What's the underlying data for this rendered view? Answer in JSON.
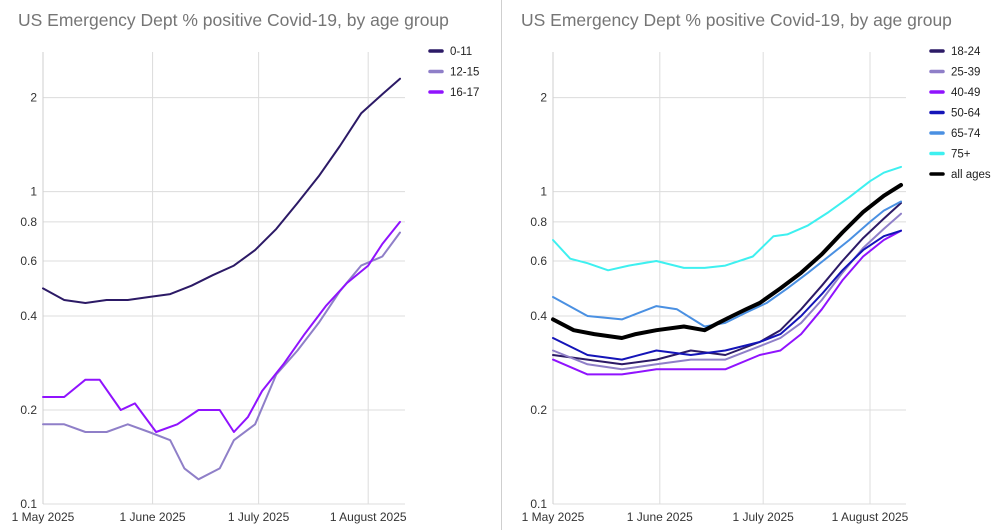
{
  "chart_data": [
    {
      "type": "line",
      "title": "US Emergency Dept % positive Covid-19, by age group",
      "y_scale": "log",
      "ylim": [
        0.1,
        2.8
      ],
      "y_ticks": [
        0.1,
        0.2,
        0.4,
        0.6,
        0.8,
        1,
        2
      ],
      "y_tick_labels": [
        "0.1",
        "0.2",
        "0.4",
        "0.6",
        "0.8",
        "1",
        "2"
      ],
      "x_ticks": [
        0,
        31,
        61,
        92
      ],
      "x_tick_labels": [
        "1 May 2025",
        "1 June 2025",
        "1 July 2025",
        "1 August 2025"
      ],
      "x_range": [
        0,
        101
      ],
      "grid": true,
      "legend_position": "top-right",
      "series": [
        {
          "name": "0-11",
          "color": "#2c1a66",
          "width": 2,
          "x": [
            0,
            6,
            12,
            18,
            24,
            30,
            36,
            42,
            48,
            54,
            60,
            66,
            72,
            78,
            84,
            90,
            96,
            101
          ],
          "y": [
            0.49,
            0.45,
            0.44,
            0.45,
            0.45,
            0.46,
            0.47,
            0.5,
            0.54,
            0.58,
            0.65,
            0.76,
            0.92,
            1.12,
            1.4,
            1.78,
            2.05,
            2.3
          ]
        },
        {
          "name": "12-15",
          "color": "#8f7fc8",
          "width": 2,
          "x": [
            0,
            6,
            12,
            18,
            24,
            30,
            36,
            40,
            44,
            50,
            54,
            60,
            66,
            72,
            78,
            84,
            90,
            96,
            101
          ],
          "y": [
            0.18,
            0.18,
            0.17,
            0.17,
            0.18,
            0.17,
            0.16,
            0.13,
            0.12,
            0.13,
            0.16,
            0.18,
            0.26,
            0.31,
            0.38,
            0.48,
            0.58,
            0.62,
            0.74
          ]
        },
        {
          "name": "16-17",
          "color": "#9013fe",
          "width": 2,
          "x": [
            0,
            6,
            12,
            16,
            22,
            26,
            32,
            38,
            44,
            50,
            54,
            58,
            62,
            68,
            74,
            80,
            86,
            92,
            96,
            101
          ],
          "y": [
            0.22,
            0.22,
            0.25,
            0.25,
            0.2,
            0.21,
            0.17,
            0.18,
            0.2,
            0.2,
            0.17,
            0.19,
            0.23,
            0.28,
            0.35,
            0.43,
            0.51,
            0.58,
            0.68,
            0.8
          ]
        }
      ]
    },
    {
      "type": "line",
      "title": "US Emergency Dept % positive Covid-19, by age group",
      "y_scale": "log",
      "ylim": [
        0.1,
        2.8
      ],
      "y_ticks": [
        0.1,
        0.2,
        0.4,
        0.6,
        0.8,
        1,
        2
      ],
      "y_tick_labels": [
        "0.1",
        "0.2",
        "0.4",
        "0.6",
        "0.8",
        "1",
        "2"
      ],
      "x_ticks": [
        0,
        31,
        61,
        92
      ],
      "x_tick_labels": [
        "1 May 2025",
        "1 June 2025",
        "1 July 2025",
        "1 August 2025"
      ],
      "x_range": [
        0,
        101
      ],
      "grid": true,
      "legend_position": "top-right",
      "series": [
        {
          "name": "18-24",
          "color": "#2c1a66",
          "width": 2,
          "x": [
            0,
            10,
            20,
            30,
            40,
            50,
            60,
            66,
            72,
            78,
            84,
            90,
            96,
            101
          ],
          "y": [
            0.3,
            0.29,
            0.28,
            0.29,
            0.31,
            0.3,
            0.33,
            0.36,
            0.42,
            0.5,
            0.6,
            0.71,
            0.82,
            0.92
          ]
        },
        {
          "name": "25-39",
          "color": "#8f7fc8",
          "width": 2,
          "x": [
            0,
            10,
            20,
            30,
            40,
            50,
            60,
            66,
            72,
            78,
            84,
            90,
            96,
            101
          ],
          "y": [
            0.31,
            0.28,
            0.27,
            0.28,
            0.29,
            0.29,
            0.32,
            0.34,
            0.38,
            0.45,
            0.55,
            0.66,
            0.76,
            0.85
          ]
        },
        {
          "name": "40-49",
          "color": "#9013fe",
          "width": 2,
          "x": [
            0,
            10,
            20,
            30,
            40,
            50,
            60,
            66,
            72,
            78,
            84,
            90,
            96,
            101
          ],
          "y": [
            0.29,
            0.26,
            0.26,
            0.27,
            0.27,
            0.27,
            0.3,
            0.31,
            0.35,
            0.42,
            0.52,
            0.62,
            0.7,
            0.75
          ]
        },
        {
          "name": "50-64",
          "color": "#1414b8",
          "width": 2,
          "x": [
            0,
            10,
            20,
            30,
            40,
            50,
            60,
            66,
            72,
            78,
            84,
            90,
            96,
            101
          ],
          "y": [
            0.34,
            0.3,
            0.29,
            0.31,
            0.3,
            0.31,
            0.33,
            0.35,
            0.4,
            0.47,
            0.56,
            0.65,
            0.72,
            0.75
          ]
        },
        {
          "name": "65-74",
          "color": "#4a90e2",
          "width": 2,
          "x": [
            0,
            10,
            20,
            30,
            36,
            44,
            50,
            56,
            62,
            68,
            74,
            80,
            86,
            92,
            96,
            101
          ],
          "y": [
            0.46,
            0.4,
            0.39,
            0.43,
            0.42,
            0.37,
            0.38,
            0.41,
            0.44,
            0.49,
            0.55,
            0.62,
            0.7,
            0.8,
            0.87,
            0.93
          ]
        },
        {
          "name": "75+",
          "color": "#3ef0f0",
          "width": 2,
          "x": [
            0,
            5,
            10,
            16,
            22,
            30,
            38,
            44,
            50,
            58,
            64,
            68,
            74,
            80,
            86,
            92,
            96,
            101
          ],
          "y": [
            0.7,
            0.61,
            0.59,
            0.56,
            0.58,
            0.6,
            0.57,
            0.57,
            0.58,
            0.62,
            0.72,
            0.73,
            0.78,
            0.86,
            0.96,
            1.08,
            1.15,
            1.2
          ]
        },
        {
          "name": "all ages",
          "color": "#000000",
          "width": 4,
          "x": [
            0,
            6,
            12,
            20,
            24,
            30,
            38,
            44,
            48,
            52,
            56,
            60,
            66,
            72,
            78,
            84,
            90,
            96,
            101
          ],
          "y": [
            0.39,
            0.36,
            0.35,
            0.34,
            0.35,
            0.36,
            0.37,
            0.36,
            0.38,
            0.4,
            0.42,
            0.44,
            0.49,
            0.55,
            0.63,
            0.74,
            0.86,
            0.97,
            1.05
          ]
        }
      ]
    }
  ]
}
